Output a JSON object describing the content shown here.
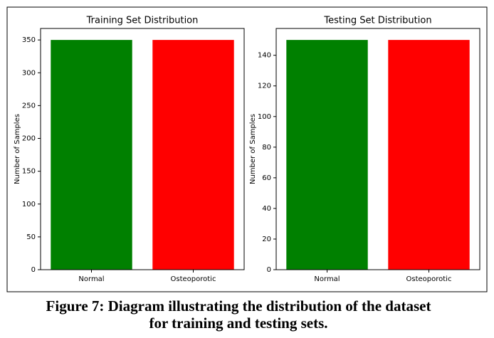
{
  "chart_data": [
    {
      "type": "bar",
      "title": "Training Set Distribution",
      "ylabel": "Number of Samples",
      "categories": [
        "Normal",
        "Osteoporotic"
      ],
      "values": [
        350,
        350
      ],
      "colors": [
        "#008000",
        "#ff0000"
      ],
      "ylim": [
        0,
        367.5
      ],
      "yticks": [
        0,
        50,
        100,
        150,
        200,
        250,
        300,
        350
      ]
    },
    {
      "type": "bar",
      "title": "Testing Set Distribution",
      "ylabel": "Number of Samples",
      "categories": [
        "Normal",
        "Osteoporotic"
      ],
      "values": [
        150,
        150
      ],
      "colors": [
        "#008000",
        "#ff0000"
      ],
      "ylim": [
        0,
        157.5
      ],
      "yticks": [
        0,
        20,
        40,
        60,
        80,
        100,
        120,
        140
      ]
    }
  ],
  "caption": [
    "Figure 7: Diagram illustrating the distribution of the dataset",
    "for training and testing sets."
  ]
}
